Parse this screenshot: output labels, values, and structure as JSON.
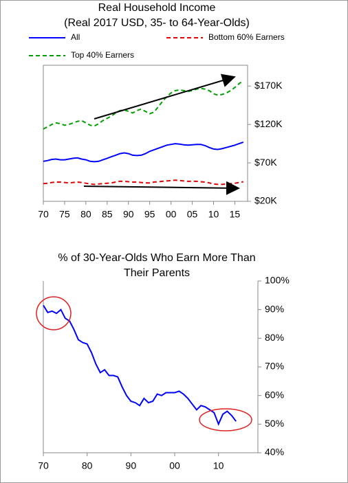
{
  "chart_data": [
    {
      "type": "line",
      "title": [
        "Real Household Income",
        "(Real 2017 USD, 35- to 64-Year-Olds)"
      ],
      "x": [
        1970,
        1971,
        1972,
        1973,
        1974,
        1975,
        1976,
        1977,
        1978,
        1979,
        1980,
        1981,
        1982,
        1983,
        1984,
        1985,
        1986,
        1987,
        1988,
        1989,
        1990,
        1991,
        1992,
        1993,
        1994,
        1995,
        1996,
        1997,
        1998,
        1999,
        2000,
        2001,
        2002,
        2003,
        2004,
        2005,
        2006,
        2007,
        2008,
        2009,
        2010,
        2011,
        2012,
        2013,
        2014,
        2015,
        2016,
        2017
      ],
      "series": [
        {
          "name": "All",
          "color": "#0000ff",
          "linestyle": "solid",
          "values": [
            72,
            73,
            74.5,
            75,
            74,
            74,
            75,
            76,
            76.5,
            75,
            74,
            72,
            71.5,
            72,
            74,
            76,
            78,
            80,
            82,
            83,
            82,
            80,
            79.5,
            80,
            82,
            85,
            87,
            89,
            91,
            93,
            94,
            95,
            94.5,
            93.5,
            93,
            93.5,
            94,
            94,
            92.5,
            90,
            88,
            87.5,
            88.5,
            90,
            91.5,
            93,
            95,
            97
          ]
        },
        {
          "name": "Bottom 60% Earners",
          "color": "#e00000",
          "linestyle": "dashed",
          "values": [
            43,
            43.5,
            44.5,
            45,
            45,
            44.5,
            44,
            44.5,
            45,
            44.5,
            43.5,
            42.5,
            42,
            42.5,
            43,
            43.5,
            44,
            45,
            46,
            46,
            45.5,
            45,
            45,
            44.5,
            44,
            44,
            45,
            45.5,
            46,
            46.5,
            47,
            47.5,
            47,
            46.5,
            46,
            46,
            46,
            45.5,
            45,
            44,
            42.5,
            42,
            42,
            42.5,
            43,
            43.5,
            44.5,
            45.5
          ]
        },
        {
          "name": "Top 40% Earners",
          "color": "#00a000",
          "linestyle": "dashed",
          "values": [
            114,
            117,
            120,
            122,
            121,
            119,
            120,
            122,
            124,
            125,
            122,
            119,
            118,
            121,
            125,
            128,
            131,
            135,
            138,
            139,
            137,
            135,
            138,
            140,
            137,
            134,
            136,
            143,
            150,
            156,
            161,
            164,
            165,
            164,
            163,
            164,
            166,
            167,
            166,
            164,
            160,
            158,
            159,
            161,
            164,
            168,
            173,
            177
          ]
        }
      ],
      "xlim": [
        1970,
        2018
      ],
      "xticks": [
        {
          "value": 1970,
          "label": "70"
        },
        {
          "value": 1975,
          "label": "75"
        },
        {
          "value": 1980,
          "label": "80"
        },
        {
          "value": 1985,
          "label": "85"
        },
        {
          "value": 1990,
          "label": "90"
        },
        {
          "value": 1995,
          "label": "95"
        },
        {
          "value": 2000,
          "label": "00"
        },
        {
          "value": 2005,
          "label": "05"
        },
        {
          "value": 2010,
          "label": "10"
        },
        {
          "value": 2015,
          "label": "15"
        }
      ],
      "ylim": [
        20,
        197
      ],
      "yticks": [
        {
          "value": 20,
          "label": "$20K"
        },
        {
          "value": 70,
          "label": "$70K"
        },
        {
          "value": 120,
          "label": "$120K"
        },
        {
          "value": 170,
          "label": "$170K"
        }
      ],
      "y_axis_side": "right",
      "grid": false,
      "frame": true
    },
    {
      "type": "line",
      "title": [
        "% of 30-Year-Olds Who Earn More Than",
        "Their Parents"
      ],
      "x": [
        1970,
        1971,
        1972,
        1973,
        1974,
        1975,
        1976,
        1977,
        1978,
        1979,
        1980,
        1981,
        1982,
        1983,
        1984,
        1985,
        1986,
        1987,
        1988,
        1989,
        1990,
        1991,
        1992,
        1993,
        1994,
        1995,
        1996,
        1997,
        1998,
        1999,
        2000,
        2001,
        2002,
        2003,
        2004,
        2005,
        2006,
        2007,
        2008,
        2009,
        2010,
        2011,
        2012,
        2013,
        2014
      ],
      "series": [
        {
          "name": null,
          "color": "#0000ff",
          "linestyle": "solid",
          "values": [
            91.5,
            89,
            89.5,
            88.7,
            90,
            87,
            86,
            83,
            79.5,
            78.5,
            78,
            75,
            71,
            68,
            69,
            67,
            67,
            66.5,
            63,
            60,
            58,
            57.5,
            56.5,
            59,
            57.5,
            58,
            60.5,
            60,
            61,
            61,
            61,
            61.5,
            60.5,
            59,
            57,
            55,
            56.5,
            56,
            55,
            54,
            50,
            53.5,
            54.5,
            53,
            51
          ]
        }
      ],
      "xlim": [
        1970,
        2019
      ],
      "xticks": [
        {
          "value": 1970,
          "label": "70"
        },
        {
          "value": 1980,
          "label": "80"
        },
        {
          "value": 1990,
          "label": "90"
        },
        {
          "value": 2000,
          "label": "00"
        },
        {
          "value": 2010,
          "label": "10"
        }
      ],
      "ylim": [
        40,
        100
      ],
      "yticks": [
        {
          "value": 40,
          "label": "40%"
        },
        {
          "value": 50,
          "label": "50%"
        },
        {
          "value": 60,
          "label": "60%"
        },
        {
          "value": 70,
          "label": "70%"
        },
        {
          "value": 80,
          "label": "80%"
        },
        {
          "value": 90,
          "label": "90%"
        },
        {
          "value": 100,
          "label": "100%"
        }
      ],
      "y_axis_side": "right",
      "grid": false,
      "frame": false
    }
  ]
}
